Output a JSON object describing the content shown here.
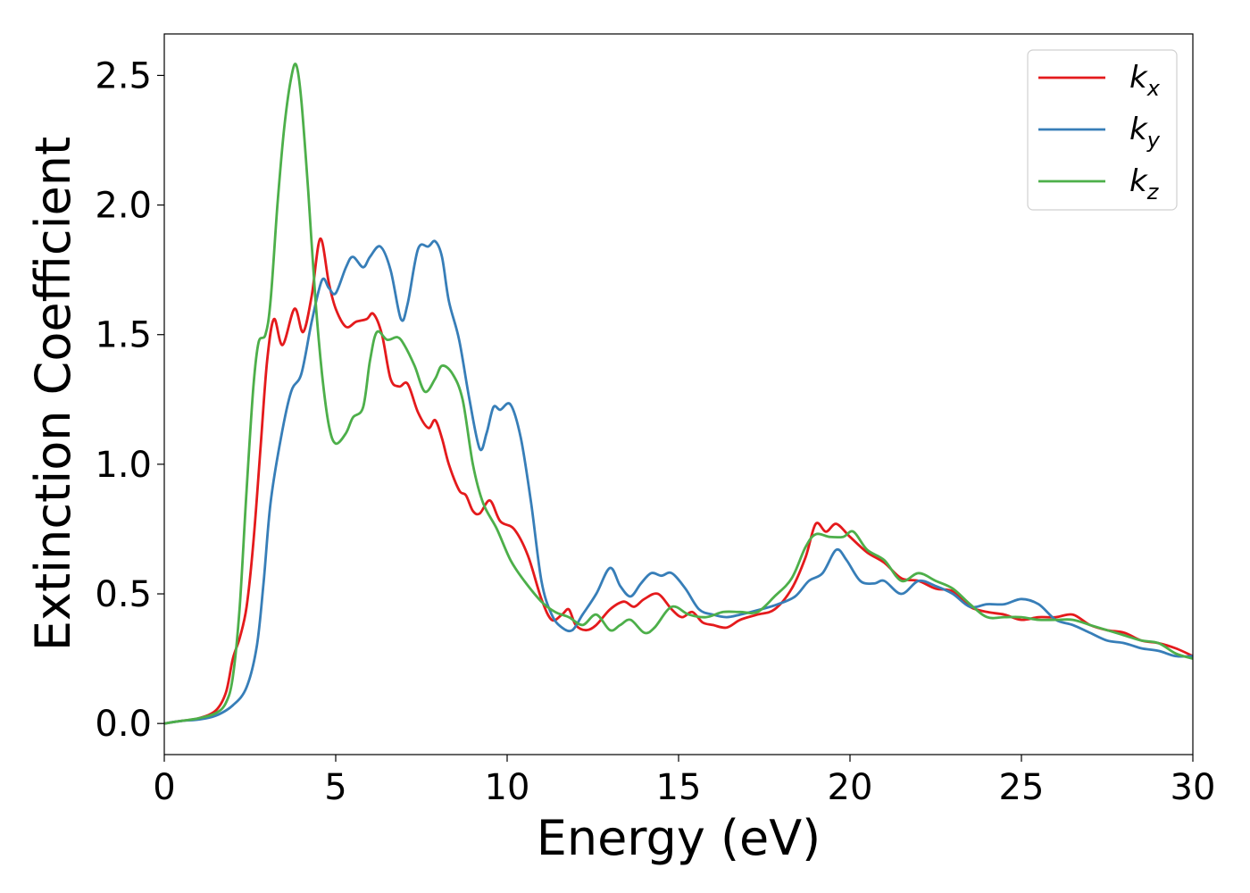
{
  "chart_data": {
    "type": "line",
    "title": "",
    "xlabel": "Energy (eV)",
    "ylabel": "Extinction Coefficient",
    "xlim": [
      0,
      30
    ],
    "ylim": [
      -0.12,
      2.66
    ],
    "xticks": [
      0,
      5,
      10,
      15,
      20,
      25,
      30
    ],
    "yticks": [
      0.0,
      0.5,
      1.0,
      1.5,
      2.0,
      2.5
    ],
    "xtick_labels": [
      "0",
      "5",
      "10",
      "15",
      "20",
      "25",
      "30"
    ],
    "ytick_labels": [
      "0.0",
      "0.5",
      "1.0",
      "1.5",
      "2.0",
      "2.5"
    ],
    "grid": false,
    "legend": "top-right",
    "series": [
      {
        "name": "k",
        "subscript": "x",
        "color": "#e41a1c",
        "points": [
          [
            0,
            0
          ],
          [
            0.5,
            0.01
          ],
          [
            1.0,
            0.02
          ],
          [
            1.5,
            0.05
          ],
          [
            1.8,
            0.12
          ],
          [
            2.0,
            0.25
          ],
          [
            2.2,
            0.33
          ],
          [
            2.4,
            0.45
          ],
          [
            2.6,
            0.7
          ],
          [
            2.8,
            1.05
          ],
          [
            3.0,
            1.4
          ],
          [
            3.2,
            1.56
          ],
          [
            3.45,
            1.46
          ],
          [
            3.8,
            1.6
          ],
          [
            4.05,
            1.51
          ],
          [
            4.3,
            1.65
          ],
          [
            4.55,
            1.87
          ],
          [
            4.8,
            1.7
          ],
          [
            5.0,
            1.6
          ],
          [
            5.3,
            1.53
          ],
          [
            5.6,
            1.55
          ],
          [
            5.9,
            1.56
          ],
          [
            6.1,
            1.58
          ],
          [
            6.35,
            1.5
          ],
          [
            6.6,
            1.33
          ],
          [
            6.85,
            1.3
          ],
          [
            7.1,
            1.31
          ],
          [
            7.4,
            1.2
          ],
          [
            7.7,
            1.14
          ],
          [
            7.9,
            1.17
          ],
          [
            8.1,
            1.1
          ],
          [
            8.3,
            1.0
          ],
          [
            8.6,
            0.9
          ],
          [
            8.8,
            0.88
          ],
          [
            9.0,
            0.82
          ],
          [
            9.2,
            0.81
          ],
          [
            9.5,
            0.86
          ],
          [
            9.8,
            0.78
          ],
          [
            10.2,
            0.75
          ],
          [
            10.6,
            0.65
          ],
          [
            11.0,
            0.48
          ],
          [
            11.3,
            0.4
          ],
          [
            11.6,
            0.42
          ],
          [
            11.8,
            0.44
          ],
          [
            12.0,
            0.38
          ],
          [
            12.3,
            0.36
          ],
          [
            12.6,
            0.38
          ],
          [
            13.0,
            0.44
          ],
          [
            13.4,
            0.47
          ],
          [
            13.7,
            0.45
          ],
          [
            14.0,
            0.48
          ],
          [
            14.4,
            0.5
          ],
          [
            14.8,
            0.44
          ],
          [
            15.1,
            0.41
          ],
          [
            15.4,
            0.43
          ],
          [
            15.7,
            0.39
          ],
          [
            16.0,
            0.38
          ],
          [
            16.4,
            0.37
          ],
          [
            16.8,
            0.4
          ],
          [
            17.3,
            0.42
          ],
          [
            17.8,
            0.44
          ],
          [
            18.3,
            0.52
          ],
          [
            18.7,
            0.64
          ],
          [
            19.0,
            0.77
          ],
          [
            19.3,
            0.74
          ],
          [
            19.6,
            0.77
          ],
          [
            20.0,
            0.72
          ],
          [
            20.5,
            0.66
          ],
          [
            21.0,
            0.62
          ],
          [
            21.5,
            0.56
          ],
          [
            22.0,
            0.55
          ],
          [
            22.5,
            0.52
          ],
          [
            23.0,
            0.51
          ],
          [
            23.5,
            0.45
          ],
          [
            24.0,
            0.43
          ],
          [
            24.5,
            0.42
          ],
          [
            25.0,
            0.4
          ],
          [
            25.5,
            0.41
          ],
          [
            26.0,
            0.41
          ],
          [
            26.5,
            0.42
          ],
          [
            27.0,
            0.38
          ],
          [
            27.5,
            0.36
          ],
          [
            28.0,
            0.35
          ],
          [
            28.5,
            0.32
          ],
          [
            29.0,
            0.31
          ],
          [
            29.5,
            0.29
          ],
          [
            30.0,
            0.26
          ]
        ]
      },
      {
        "name": "k",
        "subscript": "y",
        "color": "#377eb8",
        "points": [
          [
            0,
            0
          ],
          [
            0.5,
            0.01
          ],
          [
            1.0,
            0.015
          ],
          [
            1.5,
            0.03
          ],
          [
            2.0,
            0.07
          ],
          [
            2.4,
            0.14
          ],
          [
            2.7,
            0.3
          ],
          [
            2.9,
            0.55
          ],
          [
            3.1,
            0.85
          ],
          [
            3.4,
            1.1
          ],
          [
            3.7,
            1.28
          ],
          [
            4.0,
            1.35
          ],
          [
            4.3,
            1.55
          ],
          [
            4.6,
            1.71
          ],
          [
            4.8,
            1.68
          ],
          [
            5.0,
            1.66
          ],
          [
            5.3,
            1.76
          ],
          [
            5.5,
            1.8
          ],
          [
            5.8,
            1.76
          ],
          [
            6.0,
            1.8
          ],
          [
            6.3,
            1.84
          ],
          [
            6.6,
            1.75
          ],
          [
            6.9,
            1.56
          ],
          [
            7.1,
            1.62
          ],
          [
            7.4,
            1.83
          ],
          [
            7.7,
            1.84
          ],
          [
            7.9,
            1.86
          ],
          [
            8.1,
            1.8
          ],
          [
            8.3,
            1.63
          ],
          [
            8.6,
            1.48
          ],
          [
            8.9,
            1.25
          ],
          [
            9.2,
            1.06
          ],
          [
            9.4,
            1.12
          ],
          [
            9.6,
            1.22
          ],
          [
            9.8,
            1.21
          ],
          [
            10.1,
            1.23
          ],
          [
            10.4,
            1.1
          ],
          [
            10.7,
            0.85
          ],
          [
            11.0,
            0.55
          ],
          [
            11.3,
            0.42
          ],
          [
            11.6,
            0.37
          ],
          [
            11.9,
            0.36
          ],
          [
            12.2,
            0.42
          ],
          [
            12.6,
            0.5
          ],
          [
            13.0,
            0.6
          ],
          [
            13.3,
            0.53
          ],
          [
            13.6,
            0.49
          ],
          [
            13.9,
            0.54
          ],
          [
            14.2,
            0.58
          ],
          [
            14.5,
            0.57
          ],
          [
            14.8,
            0.58
          ],
          [
            15.2,
            0.52
          ],
          [
            15.6,
            0.44
          ],
          [
            16.0,
            0.42
          ],
          [
            16.4,
            0.41
          ],
          [
            16.8,
            0.42
          ],
          [
            17.4,
            0.44
          ],
          [
            17.9,
            0.46
          ],
          [
            18.4,
            0.49
          ],
          [
            18.8,
            0.55
          ],
          [
            19.2,
            0.58
          ],
          [
            19.6,
            0.67
          ],
          [
            19.9,
            0.63
          ],
          [
            20.3,
            0.55
          ],
          [
            20.7,
            0.54
          ],
          [
            21.0,
            0.55
          ],
          [
            21.5,
            0.5
          ],
          [
            22.0,
            0.55
          ],
          [
            22.5,
            0.53
          ],
          [
            23.0,
            0.5
          ],
          [
            23.5,
            0.45
          ],
          [
            24.0,
            0.46
          ],
          [
            24.5,
            0.46
          ],
          [
            25.0,
            0.48
          ],
          [
            25.5,
            0.46
          ],
          [
            26.0,
            0.4
          ],
          [
            26.5,
            0.38
          ],
          [
            27.0,
            0.35
          ],
          [
            27.5,
            0.32
          ],
          [
            28.0,
            0.31
          ],
          [
            28.5,
            0.29
          ],
          [
            29.0,
            0.28
          ],
          [
            29.5,
            0.26
          ],
          [
            30.0,
            0.26
          ]
        ]
      },
      {
        "name": "k",
        "subscript": "z",
        "color": "#4daf4a",
        "points": [
          [
            0,
            0
          ],
          [
            0.5,
            0.01
          ],
          [
            1.0,
            0.02
          ],
          [
            1.5,
            0.04
          ],
          [
            1.8,
            0.08
          ],
          [
            2.0,
            0.18
          ],
          [
            2.2,
            0.45
          ],
          [
            2.4,
            0.9
          ],
          [
            2.6,
            1.3
          ],
          [
            2.75,
            1.47
          ],
          [
            2.95,
            1.5
          ],
          [
            3.1,
            1.63
          ],
          [
            3.3,
            2.0
          ],
          [
            3.5,
            2.3
          ],
          [
            3.7,
            2.49
          ],
          [
            3.85,
            2.54
          ],
          [
            4.0,
            2.4
          ],
          [
            4.2,
            2.05
          ],
          [
            4.4,
            1.65
          ],
          [
            4.6,
            1.35
          ],
          [
            4.8,
            1.15
          ],
          [
            5.0,
            1.08
          ],
          [
            5.3,
            1.12
          ],
          [
            5.5,
            1.18
          ],
          [
            5.8,
            1.22
          ],
          [
            6.0,
            1.4
          ],
          [
            6.2,
            1.51
          ],
          [
            6.5,
            1.48
          ],
          [
            6.8,
            1.49
          ],
          [
            7.0,
            1.46
          ],
          [
            7.3,
            1.38
          ],
          [
            7.6,
            1.28
          ],
          [
            7.9,
            1.33
          ],
          [
            8.1,
            1.38
          ],
          [
            8.4,
            1.35
          ],
          [
            8.7,
            1.25
          ],
          [
            9.0,
            1.0
          ],
          [
            9.3,
            0.85
          ],
          [
            9.7,
            0.75
          ],
          [
            10.1,
            0.63
          ],
          [
            10.5,
            0.55
          ],
          [
            11.0,
            0.47
          ],
          [
            11.4,
            0.43
          ],
          [
            11.8,
            0.41
          ],
          [
            12.2,
            0.38
          ],
          [
            12.6,
            0.42
          ],
          [
            13.0,
            0.36
          ],
          [
            13.3,
            0.38
          ],
          [
            13.6,
            0.4
          ],
          [
            14.0,
            0.35
          ],
          [
            14.3,
            0.37
          ],
          [
            14.8,
            0.45
          ],
          [
            15.3,
            0.42
          ],
          [
            15.8,
            0.41
          ],
          [
            16.3,
            0.43
          ],
          [
            16.8,
            0.43
          ],
          [
            17.3,
            0.43
          ],
          [
            17.8,
            0.49
          ],
          [
            18.3,
            0.56
          ],
          [
            18.7,
            0.68
          ],
          [
            19.0,
            0.73
          ],
          [
            19.4,
            0.72
          ],
          [
            19.8,
            0.72
          ],
          [
            20.1,
            0.74
          ],
          [
            20.5,
            0.67
          ],
          [
            21.0,
            0.63
          ],
          [
            21.5,
            0.55
          ],
          [
            22.0,
            0.58
          ],
          [
            22.5,
            0.55
          ],
          [
            23.0,
            0.52
          ],
          [
            23.5,
            0.46
          ],
          [
            24.0,
            0.41
          ],
          [
            24.5,
            0.41
          ],
          [
            25.0,
            0.41
          ],
          [
            25.5,
            0.4
          ],
          [
            26.0,
            0.4
          ],
          [
            26.5,
            0.4
          ],
          [
            27.0,
            0.38
          ],
          [
            27.5,
            0.36
          ],
          [
            28.0,
            0.34
          ],
          [
            28.5,
            0.32
          ],
          [
            29.0,
            0.31
          ],
          [
            29.5,
            0.27
          ],
          [
            30.0,
            0.25
          ]
        ]
      }
    ]
  }
}
